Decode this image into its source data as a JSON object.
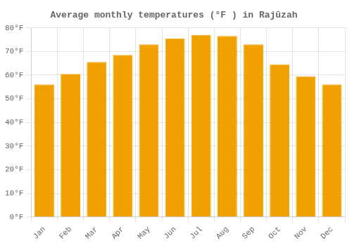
{
  "chart_data": {
    "type": "bar",
    "title": "Average monthly temperatures (°F ) in Rajūzah",
    "categories": [
      "Jan",
      "Feb",
      "Mar",
      "Apr",
      "May",
      "Jun",
      "Jul",
      "Aug",
      "Sep",
      "Oct",
      "Nov",
      "Dec"
    ],
    "values": [
      56,
      60.5,
      65.5,
      68.5,
      73,
      75.5,
      77,
      76.5,
      73,
      64.5,
      59.5,
      56
    ],
    "color": "#F0A000",
    "ylim": [
      0,
      80
    ],
    "yticks": [
      {
        "value": 0,
        "label": "0°F"
      },
      {
        "value": 10,
        "label": "10°F"
      },
      {
        "value": 20,
        "label": "20°F"
      },
      {
        "value": 30,
        "label": "30°F"
      },
      {
        "value": 40,
        "label": "40°F"
      },
      {
        "value": 50,
        "label": "50°F"
      },
      {
        "value": 60,
        "label": "60°F"
      },
      {
        "value": 70,
        "label": "70°F"
      },
      {
        "value": 80,
        "label": "80°F"
      }
    ],
    "grid": true
  }
}
